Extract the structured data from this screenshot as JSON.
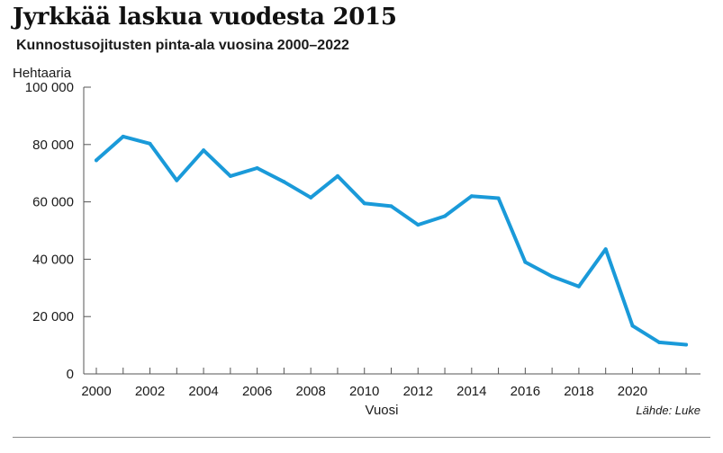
{
  "chart_data": {
    "type": "line",
    "title": "Jyrkkää laskua vuodesta 2015",
    "subtitle": "Kunnostusojitusten pinta-ala vuosina 2000–2022",
    "ylabel": "Hehtaaria",
    "xlabel": "Vuosi",
    "source": "Lähde: Luke",
    "ylim": [
      0,
      100000
    ],
    "xlim": [
      2000,
      2022
    ],
    "yticks": [
      0,
      20000,
      40000,
      60000,
      80000,
      100000
    ],
    "ytick_labels": [
      "0",
      "20 000",
      "40 000",
      "60 000",
      "80 000",
      "100 000"
    ],
    "xticks": [
      2000,
      2002,
      2004,
      2006,
      2008,
      2010,
      2012,
      2014,
      2016,
      2018,
      2020
    ],
    "xtick_labels": [
      "2000",
      "2002",
      "2004",
      "2006",
      "2008",
      "2010",
      "2012",
      "2014",
      "2016",
      "2018",
      "2020"
    ],
    "line_color": "#1a9ad9",
    "series": [
      {
        "x": [
          2000,
          2001,
          2002,
          2003,
          2004,
          2005,
          2006,
          2007,
          2008,
          2009,
          2010,
          2011,
          2012,
          2013,
          2014,
          2015,
          2016,
          2017,
          2018,
          2019,
          2020,
          2021,
          2022
        ],
        "values": [
          74500,
          82800,
          80300,
          67500,
          78000,
          69000,
          71800,
          67000,
          61500,
          69000,
          59500,
          58500,
          52000,
          55000,
          62000,
          61300,
          39000,
          34000,
          30500,
          43500,
          16800,
          11000,
          10200
        ]
      }
    ]
  }
}
